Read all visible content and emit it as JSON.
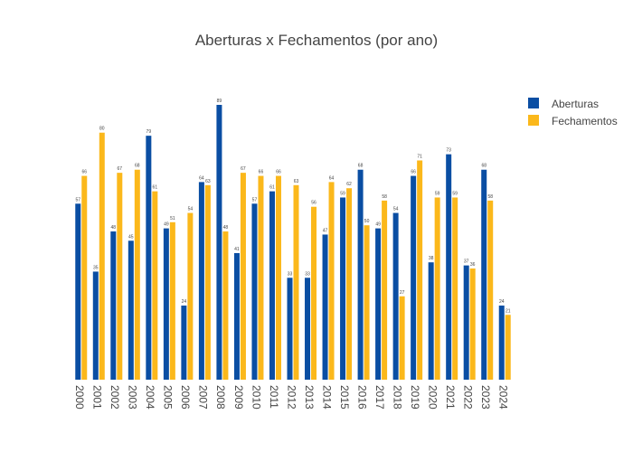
{
  "chart_data": {
    "type": "bar",
    "title": "Aberturas x Fechamentos (por ano)",
    "xlabel": "",
    "ylabel": "",
    "ylim": [
      0,
      89
    ],
    "grid": false,
    "legend_position": "top-right",
    "categories": [
      "2000",
      "2001",
      "2002",
      "2003",
      "2004",
      "2005",
      "2006",
      "2007",
      "2008",
      "2009",
      "2010",
      "2011",
      "2012",
      "2013",
      "2014",
      "2015",
      "2016",
      "2017",
      "2018",
      "2019",
      "2020",
      "2021",
      "2022",
      "2023",
      "2024"
    ],
    "series": [
      {
        "name": "Aberturas",
        "color": "#0a4ea3",
        "values": [
          57,
          35,
          48,
          45,
          79,
          49,
          24,
          64,
          89,
          41,
          57,
          61,
          33,
          33,
          47,
          59,
          68,
          49,
          54,
          66,
          38,
          73,
          37,
          68,
          24
        ]
      },
      {
        "name": "Fechamentos",
        "color": "#fbb81b",
        "values": [
          66,
          80,
          67,
          68,
          61,
          51,
          54,
          63,
          48,
          67,
          66,
          66,
          63,
          56,
          64,
          62,
          50,
          58,
          27,
          71,
          59,
          59,
          36,
          58,
          21
        ]
      }
    ]
  }
}
